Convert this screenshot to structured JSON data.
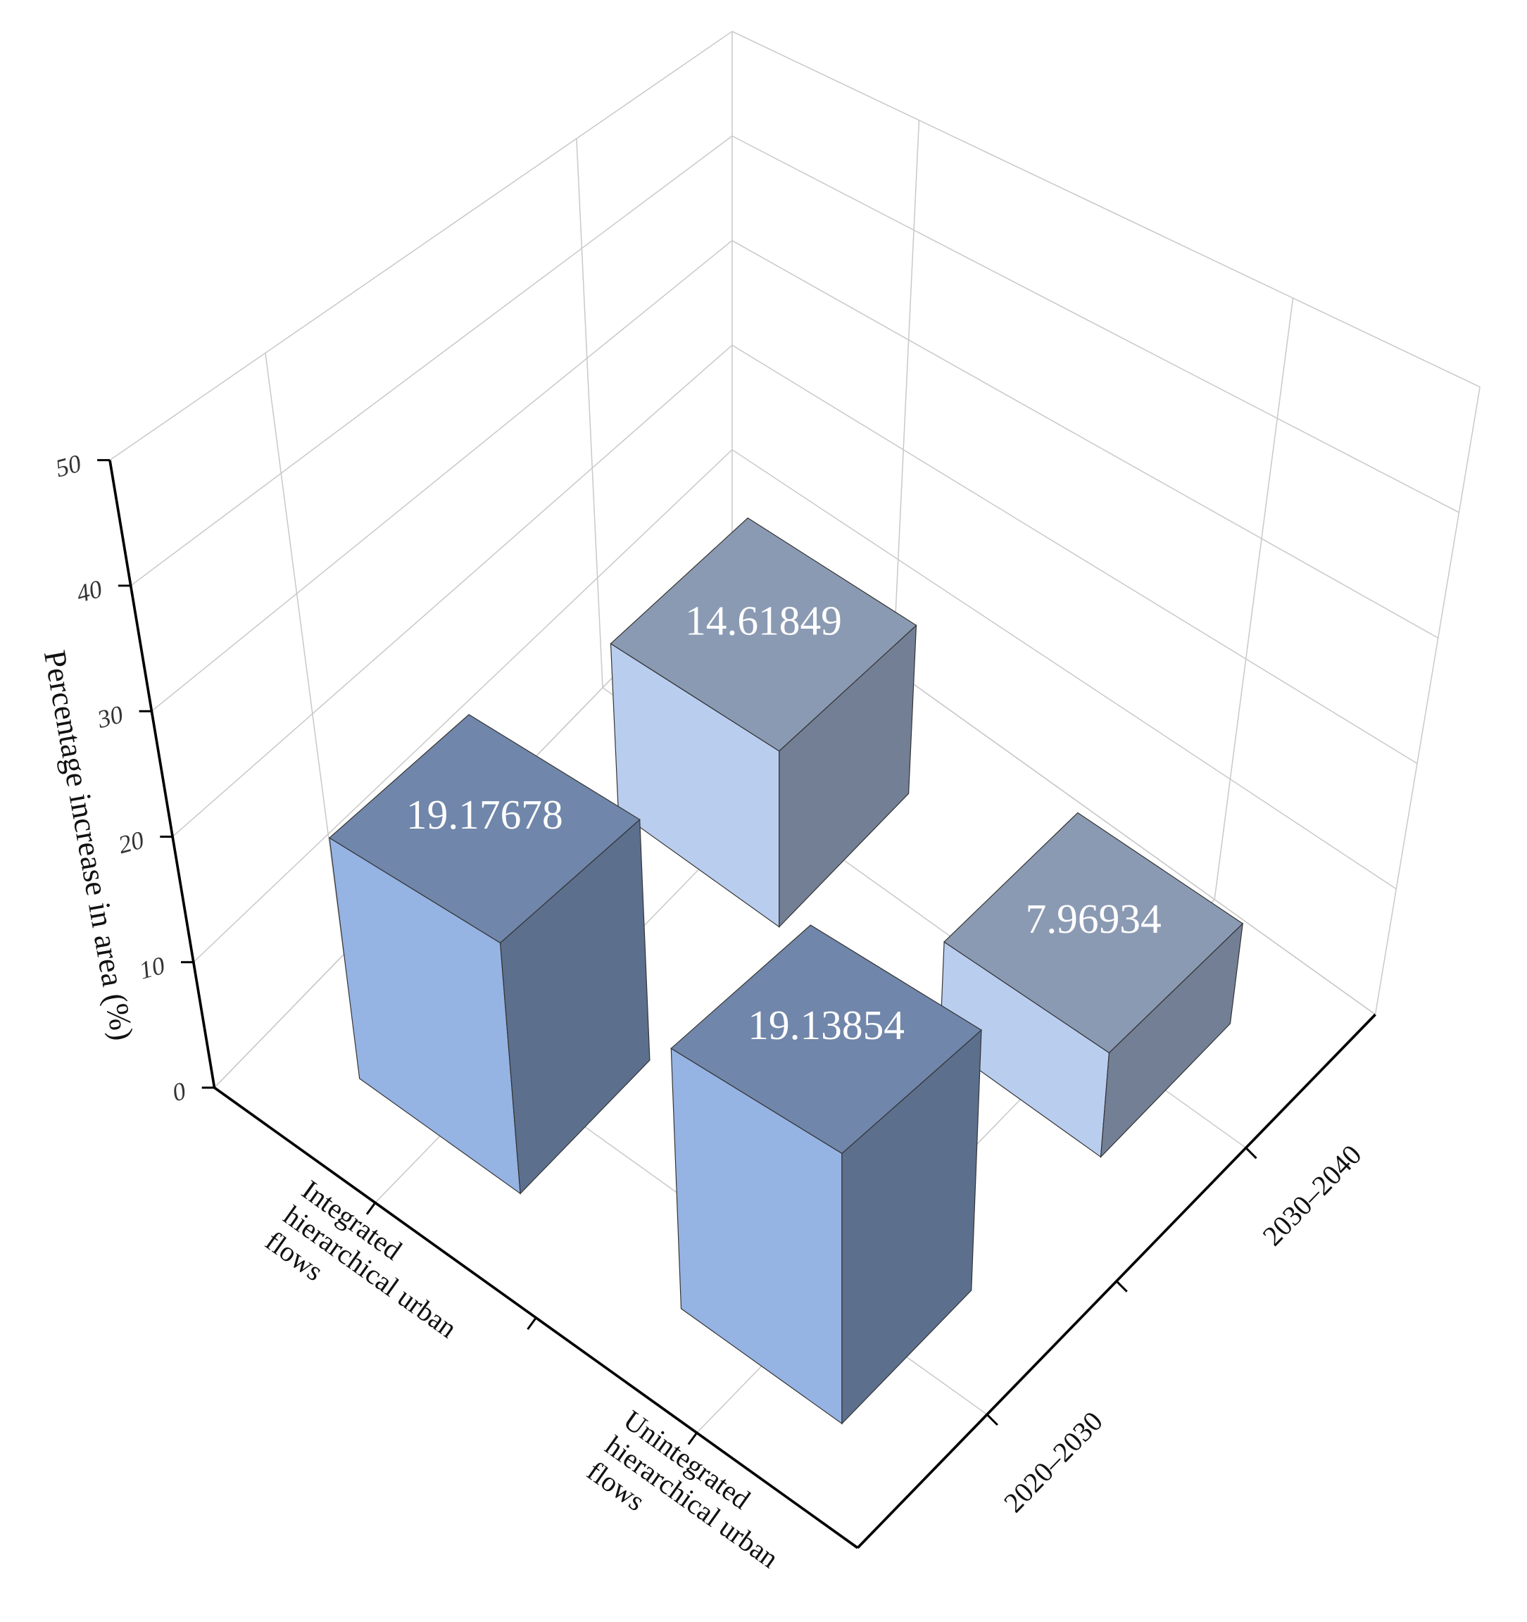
{
  "chart_data": {
    "type": "bar3d",
    "y_label": "Percentage increase in area (%)",
    "categories": [
      "Integrated hierarchical urban flows",
      "Unintegrated hierarchical urban flows"
    ],
    "series": [
      {
        "name": "2020–2030",
        "color": "#95b3e3",
        "values": [
          19.17678,
          19.13854
        ]
      },
      {
        "name": "2030–2040",
        "color": "#b9cdef",
        "values": [
          14.61849,
          7.96934
        ]
      }
    ],
    "ylim": [
      0,
      50
    ],
    "yticks": [
      0,
      10,
      20,
      30,
      40,
      50
    ],
    "grid": true
  }
}
